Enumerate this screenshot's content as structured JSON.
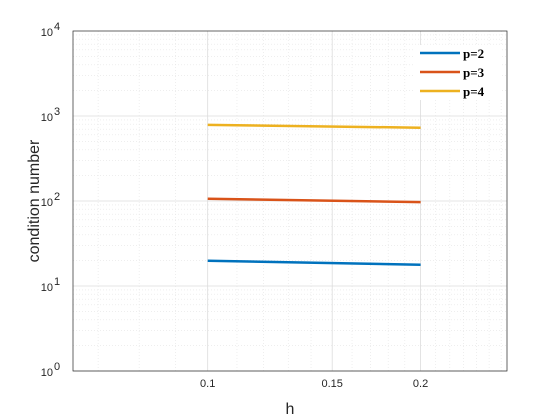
{
  "chart_data": {
    "type": "line",
    "title": "",
    "xlabel": "h",
    "ylabel": "condition number",
    "xscale": "log",
    "yscale": "log",
    "xlim": [
      0.0645,
      0.265
    ],
    "ylim": [
      1,
      10000
    ],
    "xticks": [
      0.1,
      0.15,
      0.2
    ],
    "xtick_labels": [
      "0.1",
      "0.15",
      "0.2"
    ],
    "yticks": [
      {
        "value": 1,
        "base": "10",
        "exp": "0"
      },
      {
        "value": 10,
        "base": "10",
        "exp": "1"
      },
      {
        "value": 100,
        "base": "10",
        "exp": "2"
      },
      {
        "value": 1000,
        "base": "10",
        "exp": "3"
      },
      {
        "value": 10000,
        "base": "10",
        "exp": "4"
      }
    ],
    "grid": true,
    "minor_grid": true,
    "legend_position": "top-right",
    "series": [
      {
        "name": "p=2",
        "color": "#0072BD",
        "x": [
          0.1,
          0.2
        ],
        "y": [
          19.8,
          17.8
        ]
      },
      {
        "name": "p=3",
        "color": "#D95319",
        "x": [
          0.1,
          0.2
        ],
        "y": [
          106,
          97
        ]
      },
      {
        "name": "p=4",
        "color": "#EDB120",
        "x": [
          0.1,
          0.2
        ],
        "y": [
          785,
          728
        ]
      }
    ]
  }
}
